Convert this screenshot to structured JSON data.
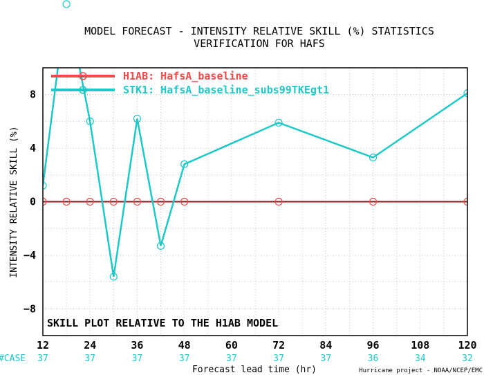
{
  "chart_data": {
    "type": "line",
    "title": "MODEL FORECAST - INTENSITY RELATIVE SKILL (%) STATISTICS",
    "subtitle": "VERIFICATION FOR HAFS",
    "xlabel": "Forecast lead time (hr)",
    "ylabel": "INTENSITY RELATIVE SKILL (%)",
    "xlim": [
      12,
      120
    ],
    "ylim": [
      -10,
      10
    ],
    "x_ticks": [
      12,
      24,
      36,
      48,
      60,
      72,
      84,
      96,
      108,
      120
    ],
    "y_ticks": [
      8,
      4,
      0,
      -4,
      -8
    ],
    "grid": true,
    "legend_position": "top-left",
    "annotation": "SKILL PLOT RELATIVE TO THE H1AB MODEL",
    "case_label": "#CASE",
    "case_counts": [
      "37",
      "37",
      "37",
      "37",
      "37",
      "37",
      "37",
      "36",
      "34",
      "32"
    ],
    "footer": "Hurricane project - NOAA/NCEP/EMC",
    "series": [
      {
        "name": "H1AB: HafsA_baseline",
        "color": "#f24a4a",
        "x": [
          12,
          18,
          24,
          30,
          36,
          42,
          48,
          72,
          96,
          120
        ],
        "y": [
          0,
          0,
          0,
          0,
          0,
          0,
          0,
          0,
          0,
          0
        ]
      },
      {
        "name": "STK1: HafsA_baseline_subs99TKEgt1",
        "color": "#1fc7c7",
        "x": [
          12,
          18,
          24,
          30,
          36,
          42,
          48,
          72,
          96,
          120
        ],
        "y": [
          1.2,
          15.0,
          6.0,
          -5.6,
          6.2,
          -3.3,
          2.8,
          5.9,
          3.3,
          8.1
        ]
      }
    ]
  }
}
